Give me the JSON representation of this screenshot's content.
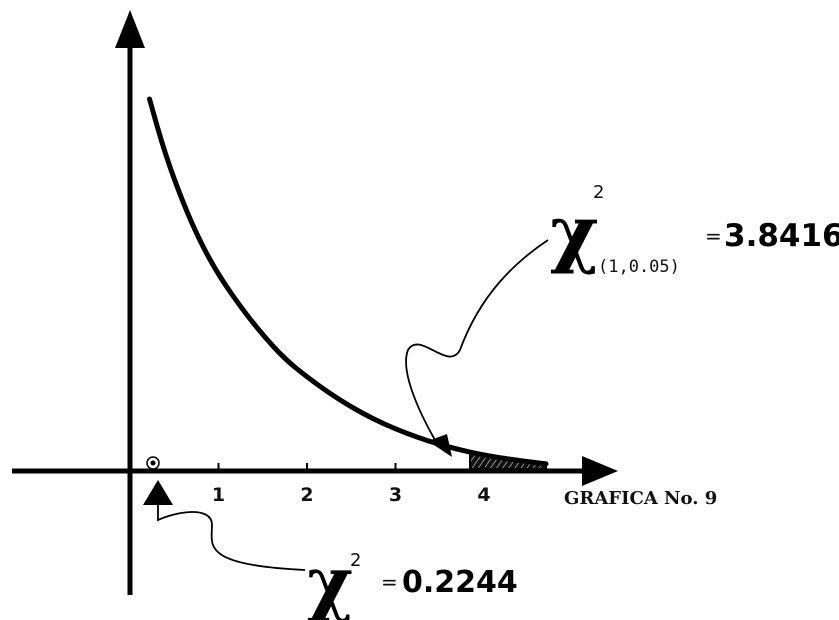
{
  "chart_data": {
    "type": "line",
    "title": "",
    "xlabel": "",
    "ylabel": "",
    "caption": "GRAFICA No. 9",
    "xlim": [
      -0.5,
      5.2
    ],
    "ylim": [
      0,
      1.0
    ],
    "x_ticks": [
      "1",
      "2",
      "3",
      "4"
    ],
    "series": [
      {
        "x": [
          0.22,
          0.4,
          0.6,
          0.8,
          1.0,
          1.25,
          1.5,
          1.75,
          2.0,
          2.25,
          2.5,
          2.75,
          3.0,
          3.25,
          3.5,
          3.84,
          4.1,
          4.4,
          4.7
        ],
        "y": [
          0.93,
          0.79,
          0.67,
          0.57,
          0.49,
          0.41,
          0.34,
          0.28,
          0.235,
          0.195,
          0.16,
          0.13,
          0.105,
          0.084,
          0.066,
          0.047,
          0.036,
          0.026,
          0.018
        ]
      }
    ],
    "grid": false,
    "shaded_region_x": [
      3.8416,
      4.7
    ],
    "annotations": [
      {
        "symbol": "χ",
        "superscript": "2",
        "subscript": "(1,0.05)",
        "equals": "=",
        "value": "3.8416",
        "x": 3.8416
      },
      {
        "symbol": "χ",
        "superscript": "2",
        "subscript": "",
        "equals": "=",
        "value": "0.2244",
        "x": 0.2244
      }
    ]
  }
}
